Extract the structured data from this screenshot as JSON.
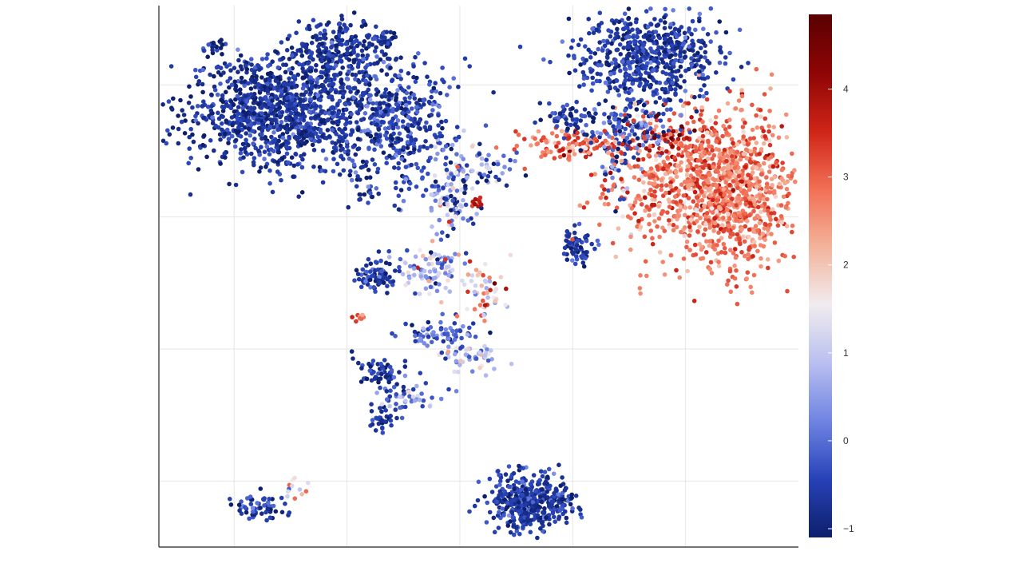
{
  "chart_data": {
    "type": "scatter",
    "title": "",
    "xlabel": "",
    "ylabel": "",
    "grid": true,
    "legend": "right",
    "colorbar": {
      "ticks": [
        -1,
        0,
        1,
        2,
        3,
        4
      ],
      "tick_labels": [
        "−1",
        "0",
        "1",
        "2",
        "3",
        "4"
      ],
      "range": [
        -1.1,
        4.85
      ],
      "colormap": [
        "#0d1f6b",
        "#2742b8",
        "#6f84e2",
        "#b9bff0",
        "#f1ecef",
        "#f3b39b",
        "#f26f55",
        "#cf2418",
        "#8e0505",
        "#5a0000"
      ]
    },
    "xlim": [
      -7,
      10
    ],
    "ylim": [
      -10.5,
      10
    ],
    "x_gridlines": [
      -5,
      -2,
      1,
      4,
      7
    ],
    "y_gridlines": [
      -8,
      -3,
      2,
      7
    ],
    "clusters": [
      {
        "x": -3.7,
        "y": 6.0,
        "sx": 1.25,
        "sy": 1.05,
        "n": 1100,
        "mean": -0.7,
        "sd": 0.35
      },
      {
        "x": -0.6,
        "y": 5.5,
        "sx": 0.75,
        "sy": 1.2,
        "n": 400,
        "mean": -0.5,
        "sd": 0.45
      },
      {
        "x": -2.2,
        "y": 8.2,
        "sx": 0.6,
        "sy": 0.7,
        "n": 250,
        "mean": -0.75,
        "sd": 0.3
      },
      {
        "x": 0.8,
        "y": 3.0,
        "sx": 0.3,
        "sy": 0.9,
        "n": 110,
        "mean": 0.4,
        "sd": 0.9
      },
      {
        "x": 0.2,
        "y": 0.0,
        "sx": 0.4,
        "sy": 0.5,
        "n": 90,
        "mean": 0.8,
        "sd": 0.9
      },
      {
        "x": -1.2,
        "y": -0.3,
        "sx": 0.25,
        "sy": 0.25,
        "n": 80,
        "mean": -0.6,
        "sd": 0.4
      },
      {
        "x": 0.4,
        "y": -2.4,
        "sx": 0.55,
        "sy": 0.25,
        "n": 70,
        "mean": -0.3,
        "sd": 0.6
      },
      {
        "x": 1.2,
        "y": -3.3,
        "sx": 0.45,
        "sy": 0.25,
        "n": 50,
        "mean": 0.8,
        "sd": 0.7
      },
      {
        "x": -1.1,
        "y": -4.0,
        "sx": 0.35,
        "sy": 0.35,
        "n": 60,
        "mean": -0.6,
        "sd": 0.4
      },
      {
        "x": -0.2,
        "y": -4.8,
        "sx": 0.5,
        "sy": 0.2,
        "n": 40,
        "mean": 0.5,
        "sd": 0.9
      },
      {
        "x": -1.0,
        "y": -5.6,
        "sx": 0.2,
        "sy": 0.25,
        "n": 35,
        "mean": -0.6,
        "sd": 0.4
      },
      {
        "x": -4.3,
        "y": -9.0,
        "sx": 0.35,
        "sy": 0.25,
        "n": 60,
        "mean": -0.5,
        "sd": 0.5
      },
      {
        "x": -3.4,
        "y": -8.3,
        "sx": 0.2,
        "sy": 0.2,
        "n": 12,
        "mean": 1.8,
        "sd": 0.8
      },
      {
        "x": 2.9,
        "y": -8.8,
        "sx": 0.55,
        "sy": 0.55,
        "n": 420,
        "mean": -0.6,
        "sd": 0.35
      },
      {
        "x": 6.0,
        "y": 8.0,
        "sx": 0.95,
        "sy": 0.9,
        "n": 600,
        "mean": -0.6,
        "sd": 0.35
      },
      {
        "x": 5.5,
        "y": 5.3,
        "sx": 0.6,
        "sy": 0.55,
        "n": 150,
        "mean": -0.3,
        "sd": 0.6
      },
      {
        "x": 8.2,
        "y": 3.0,
        "sx": 0.9,
        "sy": 1.5,
        "n": 900,
        "mean": 2.8,
        "sd": 0.45
      },
      {
        "x": 6.5,
        "y": 3.3,
        "sx": 0.9,
        "sy": 1.3,
        "n": 320,
        "mean": 2.8,
        "sd": 0.55
      },
      {
        "x": 6.5,
        "y": 4.9,
        "sx": 0.5,
        "sy": 0.3,
        "n": 40,
        "mean": 3.9,
        "sd": 0.45
      },
      {
        "x": 4.0,
        "y": 4.7,
        "sx": 0.8,
        "sy": 0.25,
        "n": 110,
        "mean": 2.9,
        "sd": 0.5
      },
      {
        "x": 4.0,
        "y": 5.7,
        "sx": 0.35,
        "sy": 0.25,
        "n": 60,
        "mean": -0.6,
        "sd": 0.4
      },
      {
        "x": 4.1,
        "y": 0.9,
        "sx": 0.22,
        "sy": 0.35,
        "n": 70,
        "mean": -0.6,
        "sd": 0.4
      },
      {
        "x": 5.1,
        "y": 3.5,
        "sx": 0.18,
        "sy": 0.6,
        "n": 30,
        "mean": 0.3,
        "sd": 1.5
      },
      {
        "x": 1.8,
        "y": 3.8,
        "sx": 0.35,
        "sy": 0.35,
        "n": 40,
        "mean": -0.2,
        "sd": 1.0
      },
      {
        "x": 1.5,
        "y": 2.6,
        "sx": 0.1,
        "sy": 0.12,
        "n": 10,
        "mean": 3.7,
        "sd": 0.3
      },
      {
        "x": 1.6,
        "y": -0.8,
        "sx": 0.35,
        "sy": 0.5,
        "n": 50,
        "mean": 2.2,
        "sd": 1.0
      },
      {
        "x": -1.5,
        "y": 3.0,
        "sx": 0.2,
        "sy": 0.4,
        "n": 20,
        "mean": -0.5,
        "sd": 0.5
      },
      {
        "x": -1.7,
        "y": -1.8,
        "sx": 0.08,
        "sy": 0.08,
        "n": 8,
        "mean": 2.9,
        "sd": 0.5
      },
      {
        "x": -1.0,
        "y": 8.7,
        "sx": 0.2,
        "sy": 0.2,
        "n": 30,
        "mean": -0.7,
        "sd": 0.3
      },
      {
        "x": -5.6,
        "y": 8.5,
        "sx": 0.15,
        "sy": 0.12,
        "n": 18,
        "mean": -0.6,
        "sd": 0.4
      }
    ]
  }
}
